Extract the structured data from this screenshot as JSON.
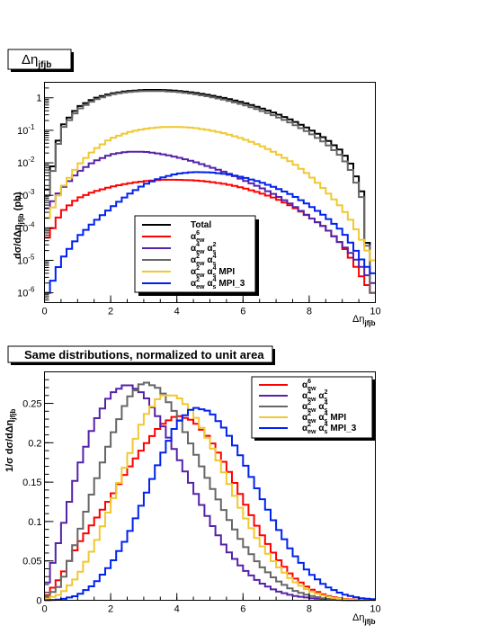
{
  "chart_data": [
    {
      "type": "line",
      "title": "Δη_jfjb",
      "xlabel": "Δη_jfjb",
      "ylabel": "dσ/dΔη_jfjb (pb)",
      "xlim": [
        0,
        10
      ],
      "ylim": [
        5e-07,
        3
      ],
      "log_y": true,
      "x_ticks": [
        "0",
        "2",
        "4",
        "6",
        "8",
        "10"
      ],
      "y_ticks": [
        "10^-6",
        "10^-5",
        "10^-4",
        "10^-3",
        "10^-2",
        "10^-1",
        "1"
      ],
      "legend_position": "bottom-center",
      "x": [
        0.1,
        0.5,
        1.0,
        1.5,
        2.0,
        2.5,
        3.0,
        3.5,
        4.0,
        4.5,
        5.0,
        5.5,
        6.0,
        6.5,
        7.0,
        7.5,
        8.0,
        8.5,
        9.0,
        9.3,
        9.6,
        9.9
      ],
      "series": [
        {
          "name": "Total",
          "color": "#000000",
          "values": [
            0.0015,
            0.12,
            0.5,
            0.95,
            1.35,
            1.6,
            1.75,
            1.75,
            1.65,
            1.45,
            1.2,
            0.95,
            0.72,
            0.5,
            0.33,
            0.2,
            0.11,
            0.055,
            0.022,
            0.008,
            0.0012,
            1e-06
          ]
        },
        {
          "name": "α_ew^6",
          "color": "#ff0000",
          "values": [
            5e-05,
            0.0003,
            0.0008,
            0.0013,
            0.0018,
            0.0023,
            0.0027,
            0.003,
            0.003,
            0.0029,
            0.0026,
            0.0022,
            0.0017,
            0.0012,
            0.0008,
            0.00045,
            0.00022,
            0.0001,
            3e-05,
            1e-05,
            3e-06,
            1e-06
          ]
        },
        {
          "name": "α_ew^4 α_s^2",
          "color": "#5522aa",
          "values": [
            0.0004,
            0.0015,
            0.005,
            0.011,
            0.018,
            0.022,
            0.022,
            0.019,
            0.015,
            0.011,
            0.0075,
            0.005,
            0.003,
            0.0018,
            0.001,
            0.0005,
            0.00022,
            0.0001,
            3e-05,
            1.5e-05,
            6e-06,
            2e-06
          ]
        },
        {
          "name": "α_ew^2 α_s^4",
          "color": "#666666",
          "values": [
            0.001,
            0.1,
            0.42,
            0.85,
            1.25,
            1.5,
            1.62,
            1.62,
            1.52,
            1.32,
            1.08,
            0.84,
            0.62,
            0.42,
            0.27,
            0.16,
            0.085,
            0.04,
            0.015,
            0.005,
            0.0008,
            1e-06
          ]
        },
        {
          "name": "α_ew^2 α_s^4 MPI",
          "color": "#f0c830",
          "values": [
            0.0002,
            0.0015,
            0.008,
            0.025,
            0.055,
            0.085,
            0.11,
            0.125,
            0.128,
            0.12,
            0.1,
            0.078,
            0.055,
            0.035,
            0.02,
            0.01,
            0.0042,
            0.0014,
            0.0004,
            0.00015,
            4e-05,
            1e-05
          ]
        },
        {
          "name": "α_ew^2 α_s^4 MPI_3",
          "color": "#0022ee",
          "values": [
            1e-06,
            1e-05,
            5e-05,
            0.00015,
            0.0004,
            0.001,
            0.0021,
            0.0034,
            0.0046,
            0.0052,
            0.0051,
            0.0045,
            0.0036,
            0.0026,
            0.0017,
            0.001,
            0.0005,
            0.00022,
            8e-05,
            3e-05,
            1e-05,
            4e-06
          ]
        }
      ]
    },
    {
      "type": "line",
      "title": "Same distributions, normalized to unit area",
      "xlabel": "Δη_jfjb",
      "ylabel": "1/σ dσ/dΔη_jfjb",
      "xlim": [
        0,
        10
      ],
      "ylim": [
        0,
        0.29
      ],
      "x_ticks": [
        "0",
        "2",
        "4",
        "6",
        "8",
        "10"
      ],
      "y_ticks": [
        "0",
        "0.05",
        "0.1",
        "0.15",
        "0.2",
        "0.25"
      ],
      "legend_position": "top-right",
      "x": [
        0.0,
        0.5,
        1.0,
        1.5,
        2.0,
        2.5,
        3.0,
        3.5,
        4.0,
        4.5,
        5.0,
        5.5,
        6.0,
        6.5,
        7.0,
        7.5,
        8.0,
        8.5,
        9.0,
        9.5,
        10.0
      ],
      "series": [
        {
          "name": "α_ew^6",
          "color": "#ff0000",
          "values": [
            0.002,
            0.03,
            0.07,
            0.1,
            0.13,
            0.165,
            0.195,
            0.222,
            0.235,
            0.228,
            0.205,
            0.17,
            0.128,
            0.088,
            0.055,
            0.03,
            0.015,
            0.006,
            0.002,
            0.0005,
            0.0
          ]
        },
        {
          "name": "α_ew^4 α_s^2",
          "color": "#5522aa",
          "values": [
            0.01,
            0.085,
            0.165,
            0.225,
            0.262,
            0.275,
            0.262,
            0.228,
            0.185,
            0.142,
            0.1,
            0.065,
            0.04,
            0.023,
            0.012,
            0.006,
            0.003,
            0.001,
            0.0003,
            0.0,
            0.0
          ]
        },
        {
          "name": "α_ew^2 α_s^4",
          "color": "#666666",
          "values": [
            0.001,
            0.02,
            0.08,
            0.145,
            0.205,
            0.255,
            0.278,
            0.268,
            0.235,
            0.192,
            0.148,
            0.108,
            0.072,
            0.045,
            0.026,
            0.013,
            0.006,
            0.002,
            0.0005,
            0.0,
            0.0
          ]
        },
        {
          "name": "α_ew^2 α_s^4 MPI",
          "color": "#f0c830",
          "values": [
            0.0005,
            0.008,
            0.03,
            0.068,
            0.12,
            0.178,
            0.232,
            0.26,
            0.26,
            0.238,
            0.2,
            0.155,
            0.11,
            0.073,
            0.045,
            0.025,
            0.012,
            0.005,
            0.0015,
            0.0003,
            0.0
          ]
        },
        {
          "name": "α_ew^2 α_s^4 MPI_3",
          "color": "#0022ee",
          "values": [
            0.0,
            0.001,
            0.006,
            0.02,
            0.045,
            0.08,
            0.128,
            0.18,
            0.225,
            0.245,
            0.24,
            0.215,
            0.178,
            0.135,
            0.095,
            0.06,
            0.035,
            0.018,
            0.008,
            0.003,
            0.001
          ]
        }
      ]
    }
  ],
  "legend_labels": {
    "total": "Total",
    "ew6_base": "α",
    "ew6_sup": "6",
    "ew6_sub": "ew",
    "ew4s2_a": "α",
    "ew4s2_sup1": "4",
    "ew4s2_sub1": "ew",
    "ew4s2_b": "α",
    "ew4s2_sup2": "2",
    "ew4s2_sub2": "s",
    "ew2s4_a": "α",
    "ew2s4_sup1": "2",
    "ew2s4_sub1": "ew",
    "ew2s4_b": "α",
    "ew2s4_sup2": "4",
    "ew2s4_sub2": "s",
    "mpi_suffix": "MPI",
    "mpi3_suffix": "MPI_3"
  },
  "labels": {
    "top_title_main": "Δη",
    "top_title_sub": "jfjb",
    "top_ylabel_a": "dσ/dΔη",
    "top_ylabel_sub": "jfjb",
    "top_ylabel_b": " (pb)",
    "xlabel_main": "Δη",
    "xlabel_sub": "jfjb",
    "bottom_title": "Same distributions, normalized to unit area",
    "bottom_ylabel_a": "1/σ dσ/dΔη",
    "bottom_ylabel_sub": "jfjb"
  }
}
